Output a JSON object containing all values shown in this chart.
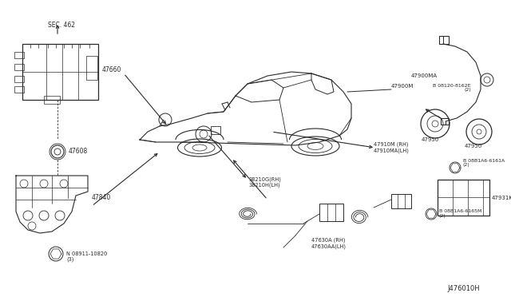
{
  "background_color": "#ffffff",
  "line_color": "#2a2a2a",
  "diagram_code": "J476010H",
  "fig_width": 6.4,
  "fig_height": 3.72,
  "dpi": 100,
  "label_47660": "47660",
  "label_47608": "47608",
  "label_47840": "47840",
  "label_nut": "N 08911-10820\n(3)",
  "label_47900M": "47900M",
  "label_47900MA": "47900MA",
  "label_bolt1": "B 08120-8162E\n(2)",
  "label_47950a": "47950",
  "label_47950b": "47950",
  "label_bolt2": "B 08B1A6-6161A\n(2)",
  "label_47931K": "47931K",
  "label_bolt3": "B 08B1A6-6165M\n(2)",
  "label_47910": "47910M (RH)\n47910MA(LH)",
  "label_38210": "38210G(RH)\n38210H(LH)",
  "label_47630": "47630A (RH)\n47630AA(LH)",
  "label_sec": "SEC. 462"
}
